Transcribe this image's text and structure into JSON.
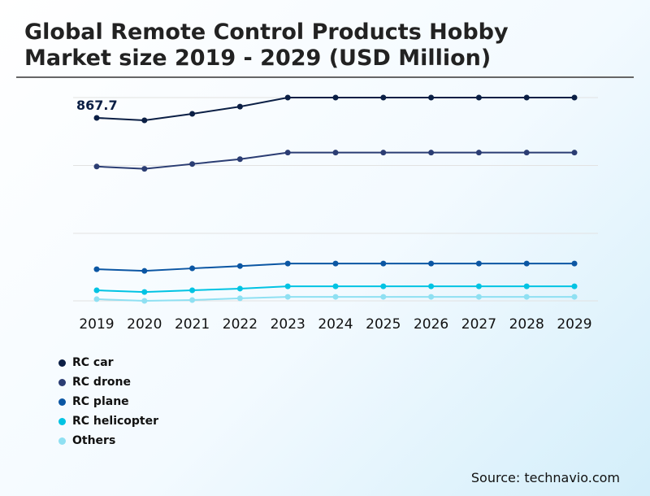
{
  "title": "Global Remote Control Products Hobby Market size 2019 - 2029 (USD Million)",
  "source": "Source: technavio.com",
  "chart_data": {
    "type": "line",
    "title": "Global Remote Control Products Hobby Market size 2019 - 2029 (USD Million)",
    "categories": [
      "2019",
      "2020",
      "2021",
      "2022",
      "2023",
      "2024",
      "2025",
      "2026",
      "2027",
      "2028",
      "2029"
    ],
    "ylim": [
      0,
      964
    ],
    "grid": true,
    "legend": "bottom-left",
    "annotations": [
      {
        "series": "RC car",
        "category": "2019",
        "label": "867.7"
      }
    ],
    "series": [
      {
        "name": "RC car",
        "color": "#0b1f45",
        "values": [
          867.7,
          856,
          887,
          921,
          964,
          964,
          964,
          964,
          964,
          964,
          964
        ]
      },
      {
        "name": "RC drone",
        "color": "#2b3d73",
        "values": [
          637,
          626,
          649,
          672,
          703,
          703,
          703,
          703,
          703,
          703,
          703
        ]
      },
      {
        "name": "RC plane",
        "color": "#0b56a3",
        "values": [
          150,
          142,
          154,
          165,
          177,
          177,
          177,
          177,
          177,
          177,
          177
        ]
      },
      {
        "name": "RC helicopter",
        "color": "#00c3e3",
        "values": [
          50,
          42,
          50,
          58,
          69,
          69,
          69,
          69,
          69,
          69,
          69
        ]
      },
      {
        "name": "Others",
        "color": "#8fe0f2",
        "values": [
          8,
          0,
          4,
          12,
          19,
          19,
          19,
          19,
          19,
          19,
          19
        ]
      }
    ]
  }
}
